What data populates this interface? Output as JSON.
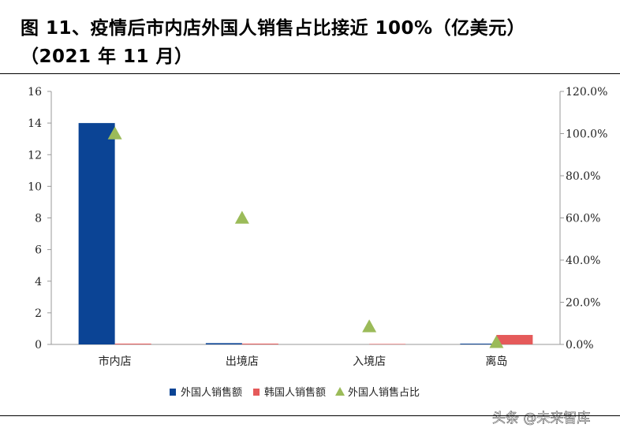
{
  "title": {
    "line1": "图 11、疫情后市内店外国人销售占比接近 100%（亿美元）",
    "line2": "（2021 年 11 月）"
  },
  "watermark": "头条 @未来智库",
  "colors": {
    "foreign_sales": "#0B4495",
    "korean_sales": "#E55A5A",
    "foreign_share": "#9BBB59",
    "axis": "#999999"
  },
  "chart_data": {
    "type": "bar",
    "categories": [
      "市内店",
      "出境店",
      "入境店",
      "离岛"
    ],
    "series": [
      {
        "name": "外国人销售额",
        "kind": "bar",
        "axis": "left",
        "values": [
          14.0,
          0.08,
          0.0,
          0.05
        ]
      },
      {
        "name": "韩国人销售额",
        "kind": "bar",
        "axis": "left",
        "values": [
          0.05,
          0.05,
          0.03,
          0.6
        ]
      },
      {
        "name": "外国人销售占比",
        "kind": "scatter",
        "marker": "triangle",
        "axis": "right",
        "values": [
          1.0,
          0.6,
          0.085,
          0.01
        ]
      }
    ],
    "ylim_left": [
      0,
      16
    ],
    "yticks_left": [
      "0",
      "2",
      "4",
      "6",
      "8",
      "10",
      "12",
      "14",
      "16"
    ],
    "ylim_right": [
      0,
      1.2
    ],
    "yticks_right": [
      "0.0%",
      "20.0%",
      "40.0%",
      "60.0%",
      "80.0%",
      "100.0%",
      "120.0%"
    ],
    "legend_position": "bottom",
    "grid": false
  }
}
